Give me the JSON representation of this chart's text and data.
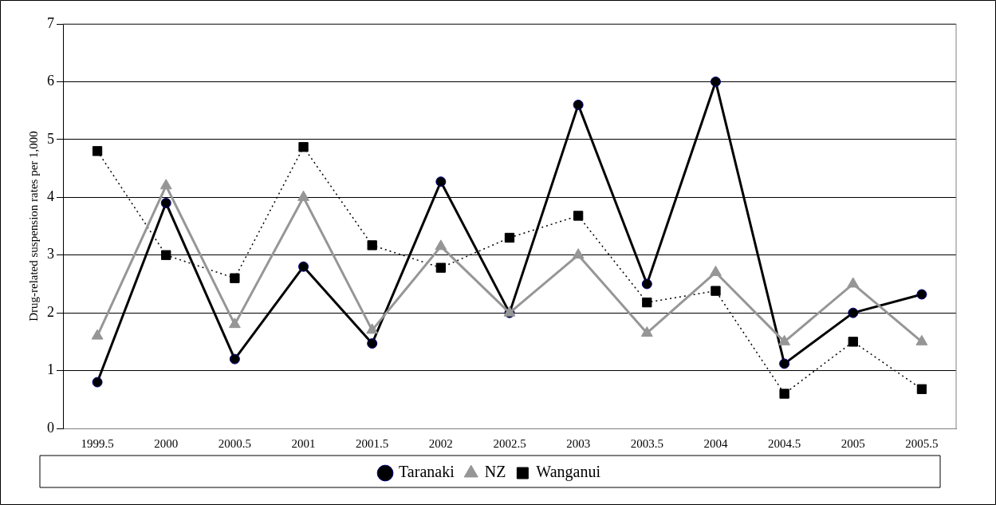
{
  "chart_data": {
    "type": "line",
    "ylabel": "Drug-related suspension rates per 1,000",
    "categories": [
      "1999.5",
      "2000",
      "2000.5",
      "2001",
      "2001.5",
      "2002",
      "2002.5",
      "2003",
      "2003.5",
      "2004",
      "2004.5",
      "2005",
      "2005.5"
    ],
    "series": [
      {
        "name": "Taranaki",
        "color": "#000000",
        "marker": "circle",
        "line_style": "solid",
        "values": [
          0.8,
          3.9,
          1.2,
          2.8,
          1.47,
          4.27,
          2.0,
          5.6,
          2.5,
          6.0,
          1.12,
          2.0,
          2.32
        ]
      },
      {
        "name": "NZ",
        "color": "#969696",
        "marker": "triangle",
        "line_style": "solid",
        "values": [
          1.6,
          4.2,
          1.8,
          4.0,
          1.7,
          3.15,
          2.0,
          3.0,
          1.65,
          2.7,
          1.5,
          2.5,
          1.5
        ]
      },
      {
        "name": "Wanganui",
        "color": "#000000",
        "marker": "square",
        "line_style": "dotted",
        "values": [
          4.8,
          3.0,
          2.6,
          4.87,
          3.17,
          2.78,
          3.3,
          3.68,
          2.18,
          2.38,
          0.6,
          1.5,
          0.68
        ]
      }
    ],
    "ylim": [
      0,
      7
    ],
    "yticks": [
      0,
      1,
      2,
      3,
      4,
      5,
      6,
      7
    ],
    "grid": "y",
    "legend": "bottom"
  }
}
